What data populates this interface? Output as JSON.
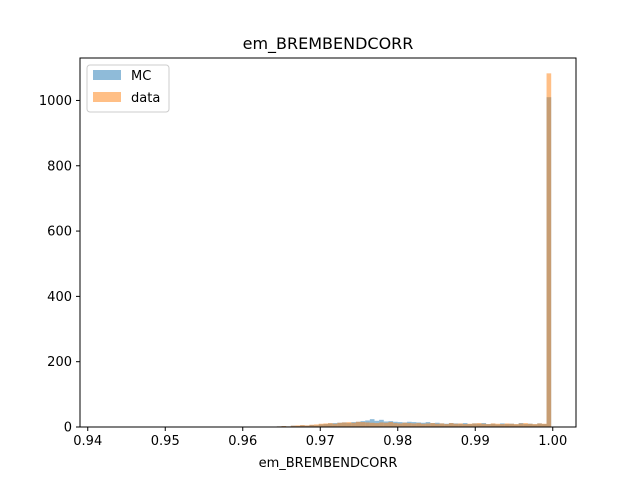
{
  "chart_data": {
    "type": "bar",
    "title": "em_BREMBENDCORR",
    "xlabel": "em_BREMBENDCORR",
    "ylabel": "",
    "xlim": [
      0.939,
      1.003
    ],
    "ylim": [
      0,
      1130
    ],
    "x_ticks": [
      "0.94",
      "0.95",
      "0.96",
      "0.97",
      "0.98",
      "0.99",
      "1.00"
    ],
    "y_ticks": [
      "0",
      "200",
      "400",
      "600",
      "800",
      "1000"
    ],
    "legend_position": "top-left",
    "grid": false,
    "bin_width": 0.0006,
    "series": [
      {
        "name": "MC",
        "color": "#1f77b4",
        "opacity": 0.5,
        "x": [
          0.9647,
          0.9653,
          0.9659,
          0.9665,
          0.9671,
          0.9677,
          0.9683,
          0.9689,
          0.9695,
          0.9701,
          0.9707,
          0.9713,
          0.9719,
          0.9725,
          0.9731,
          0.9737,
          0.9743,
          0.9749,
          0.9755,
          0.9761,
          0.9767,
          0.9773,
          0.9779,
          0.9785,
          0.9791,
          0.9797,
          0.9803,
          0.9809,
          0.9815,
          0.9821,
          0.9827,
          0.9833,
          0.9839,
          0.9845,
          0.9851,
          0.9857,
          0.9863,
          0.9869,
          0.9875,
          0.9881,
          0.9887,
          0.9893,
          0.9899,
          0.9905,
          0.9911,
          0.9917,
          0.9923,
          0.9929,
          0.9935,
          0.9941,
          0.9947,
          0.9953,
          0.9959,
          0.9965,
          0.9971,
          0.9977,
          0.9983,
          0.9989,
          0.9995
        ],
        "values": [
          2,
          3,
          2,
          4,
          3,
          5,
          4,
          6,
          5,
          8,
          9,
          11,
          12,
          13,
          14,
          12,
          15,
          16,
          18,
          20,
          24,
          19,
          22,
          17,
          18,
          16,
          15,
          14,
          16,
          15,
          14,
          13,
          15,
          12,
          13,
          11,
          10,
          12,
          11,
          10,
          12,
          9,
          11,
          10,
          12,
          9,
          10,
          8,
          11,
          9,
          10,
          8,
          12,
          9,
          10,
          8,
          11,
          9,
          1010
        ]
      },
      {
        "name": "data",
        "color": "#ff7f0e",
        "opacity": 0.5,
        "x": [
          0.9641,
          0.9647,
          0.9653,
          0.9659,
          0.9665,
          0.9671,
          0.9677,
          0.9683,
          0.9689,
          0.9695,
          0.9701,
          0.9707,
          0.9713,
          0.9719,
          0.9725,
          0.9731,
          0.9737,
          0.9743,
          0.9749,
          0.9755,
          0.9761,
          0.9767,
          0.9773,
          0.9779,
          0.9785,
          0.9791,
          0.9797,
          0.9803,
          0.9809,
          0.9815,
          0.9821,
          0.9827,
          0.9833,
          0.9839,
          0.9845,
          0.9851,
          0.9857,
          0.9863,
          0.9869,
          0.9875,
          0.9881,
          0.9887,
          0.9893,
          0.9899,
          0.9905,
          0.9911,
          0.9917,
          0.9923,
          0.9929,
          0.9935,
          0.9941,
          0.9947,
          0.9953,
          0.9959,
          0.9965,
          0.9971,
          0.9977,
          0.9983,
          0.9989,
          0.9995
        ],
        "values": [
          1,
          2,
          3,
          2,
          4,
          5,
          6,
          5,
          7,
          8,
          10,
          11,
          12,
          10,
          13,
          14,
          15,
          13,
          16,
          15,
          14,
          13,
          12,
          14,
          13,
          15,
          12,
          11,
          13,
          12,
          11,
          12,
          10,
          11,
          12,
          10,
          11,
          9,
          12,
          10,
          11,
          9,
          10,
          11,
          12,
          10,
          9,
          11,
          10,
          9,
          11,
          10,
          9,
          11,
          12,
          10,
          9,
          11,
          10,
          1083
        ]
      }
    ]
  }
}
